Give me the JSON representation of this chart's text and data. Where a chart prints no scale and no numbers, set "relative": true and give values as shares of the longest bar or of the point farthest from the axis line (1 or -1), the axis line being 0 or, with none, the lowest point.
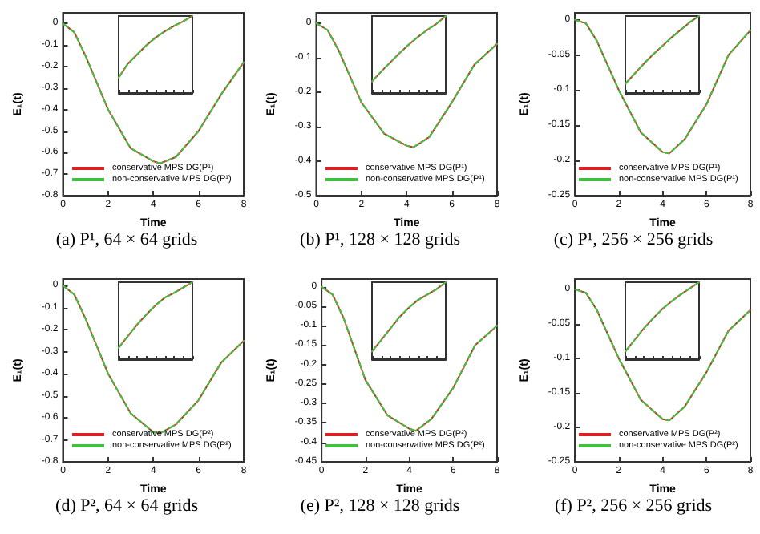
{
  "chart_data": [
    {
      "type": "line",
      "title": "(a) P¹, 64 × 64 grids",
      "xlabel": "Time",
      "ylabel": "E₁(t)",
      "x": [
        0,
        0.5,
        1,
        2,
        3,
        4,
        4.3,
        5,
        6,
        7,
        8
      ],
      "xlim": [
        0,
        8
      ],
      "xticks": [
        0,
        2,
        4,
        6,
        8
      ],
      "ylim": [
        -0.8,
        0.05
      ],
      "yticks": [
        0,
        -0.1,
        -0.2,
        -0.3,
        -0.4,
        -0.5,
        -0.6,
        -0.7,
        -0.8
      ],
      "legend": "bottom",
      "series": [
        {
          "name": "conservative MPS DG(P¹)",
          "color": "#e02020",
          "values": [
            0,
            -0.04,
            -0.15,
            -0.4,
            -0.58,
            -0.64,
            -0.65,
            -0.62,
            -0.5,
            -0.33,
            -0.18
          ]
        },
        {
          "name": "non-conservative MPS DG(P¹)",
          "color": "#40c040",
          "line_style": "dashed",
          "values": [
            0,
            -0.04,
            -0.15,
            -0.4,
            -0.58,
            -0.64,
            -0.65,
            -0.62,
            -0.5,
            -0.33,
            -0.18
          ]
        }
      ]
    },
    {
      "type": "line",
      "relative": true,
      "tick_labels": false,
      "categories": [
        null,
        null,
        null,
        null,
        null,
        null,
        null,
        null,
        null
      ],
      "series": [
        {
          "color": "#e02020",
          "values": [
            0.2,
            0.38,
            0.5,
            0.62,
            0.72,
            0.8,
            0.87,
            0.93,
            1
          ]
        },
        {
          "color": "#40c040",
          "line_style": "dashed",
          "values": [
            0.2,
            0.38,
            0.5,
            0.62,
            0.72,
            0.8,
            0.87,
            0.93,
            1
          ]
        }
      ]
    },
    {
      "type": "line",
      "title": "(b) P¹, 128 × 128 grids",
      "xlabel": "Time",
      "ylabel": "E₁(t)",
      "x": [
        0,
        0.5,
        1,
        2,
        3,
        4,
        4.3,
        5,
        6,
        7,
        8
      ],
      "xlim": [
        0,
        8
      ],
      "xticks": [
        0,
        2,
        4,
        6,
        8
      ],
      "ylim": [
        -0.5,
        0.03
      ],
      "yticks": [
        0,
        -0.1,
        -0.2,
        -0.3,
        -0.4,
        -0.5
      ],
      "legend": "bottom",
      "series": [
        {
          "name": "conservative MPS DG(P¹)",
          "color": "#e02020",
          "values": [
            0,
            -0.02,
            -0.08,
            -0.23,
            -0.32,
            -0.355,
            -0.36,
            -0.33,
            -0.23,
            -0.12,
            -0.06
          ]
        },
        {
          "name": "non-conservative MPS DG(P¹)",
          "color": "#40c040",
          "line_style": "dashed",
          "values": [
            0,
            -0.02,
            -0.08,
            -0.23,
            -0.32,
            -0.355,
            -0.36,
            -0.33,
            -0.23,
            -0.12,
            -0.06
          ]
        }
      ]
    },
    {
      "type": "line",
      "relative": true,
      "tick_labels": false,
      "categories": [
        null,
        null,
        null,
        null,
        null,
        null,
        null,
        null,
        null
      ],
      "series": [
        {
          "color": "#e02020",
          "values": [
            0.15,
            0.28,
            0.4,
            0.52,
            0.63,
            0.73,
            0.82,
            0.9,
            1
          ]
        },
        {
          "color": "#40c040",
          "line_style": "dashed",
          "values": [
            0.15,
            0.28,
            0.4,
            0.52,
            0.63,
            0.73,
            0.82,
            0.9,
            1
          ]
        }
      ]
    },
    {
      "type": "line",
      "title": "(c) P¹, 256 × 256 grids",
      "xlabel": "Time",
      "ylabel": "E₁(t)",
      "x": [
        0,
        0.5,
        1,
        2,
        3,
        4,
        4.3,
        5,
        6,
        7,
        8
      ],
      "xlim": [
        0,
        8
      ],
      "xticks": [
        0,
        2,
        4,
        6,
        8
      ],
      "ylim": [
        -0.25,
        0.01
      ],
      "yticks": [
        0,
        -0.05,
        -0.1,
        -0.15,
        -0.2,
        -0.25
      ],
      "legend": "bottom",
      "series": [
        {
          "name": "conservative MPS DG(P¹)",
          "color": "#e02020",
          "values": [
            0,
            -0.005,
            -0.03,
            -0.1,
            -0.16,
            -0.188,
            -0.19,
            -0.17,
            -0.12,
            -0.05,
            -0.015
          ]
        },
        {
          "name": "non-conservative MPS DG(P¹)",
          "color": "#40c040",
          "line_style": "dashed",
          "values": [
            0,
            -0.005,
            -0.03,
            -0.1,
            -0.16,
            -0.188,
            -0.19,
            -0.17,
            -0.12,
            -0.05,
            -0.015
          ]
        }
      ]
    },
    {
      "type": "line",
      "relative": true,
      "tick_labels": false,
      "categories": [
        null,
        null,
        null,
        null,
        null,
        null,
        null,
        null,
        null
      ],
      "series": [
        {
          "color": "#e02020",
          "values": [
            0.12,
            0.25,
            0.38,
            0.5,
            0.61,
            0.72,
            0.82,
            0.92,
            1
          ]
        },
        {
          "color": "#40c040",
          "line_style": "dashed",
          "values": [
            0.12,
            0.25,
            0.38,
            0.5,
            0.61,
            0.72,
            0.82,
            0.92,
            1
          ]
        }
      ]
    },
    {
      "type": "line",
      "title": "(d) P², 64 × 64 grids",
      "xlabel": "Time",
      "ylabel": "E₁(t)",
      "x": [
        0,
        0.5,
        1,
        2,
        3,
        4,
        4.3,
        5,
        6,
        7,
        8
      ],
      "xlim": [
        0,
        8
      ],
      "xticks": [
        0,
        2,
        4,
        6,
        8
      ],
      "ylim": [
        -0.8,
        0.03
      ],
      "yticks": [
        0,
        -0.1,
        -0.2,
        -0.3,
        -0.4,
        -0.5,
        -0.6,
        -0.7,
        -0.8
      ],
      "legend": "bottom",
      "series": [
        {
          "name": "conservative MPS DG(P²)",
          "color": "#e02020",
          "values": [
            0,
            -0.04,
            -0.15,
            -0.4,
            -0.58,
            -0.665,
            -0.67,
            -0.63,
            -0.52,
            -0.35,
            -0.25
          ]
        },
        {
          "name": "non-conservative MPS DG(P²)",
          "color": "#40c040",
          "line_style": "dashed",
          "values": [
            0,
            -0.04,
            -0.15,
            -0.4,
            -0.58,
            -0.665,
            -0.67,
            -0.63,
            -0.52,
            -0.35,
            -0.25
          ]
        }
      ]
    },
    {
      "type": "line",
      "relative": true,
      "tick_labels": false,
      "categories": [
        null,
        null,
        null,
        null,
        null,
        null,
        null,
        null,
        null
      ],
      "series": [
        {
          "color": "#e02020",
          "values": [
            0.15,
            0.3,
            0.45,
            0.58,
            0.7,
            0.8,
            0.86,
            0.93,
            1
          ]
        },
        {
          "color": "#40c040",
          "line_style": "dashed",
          "values": [
            0.15,
            0.3,
            0.45,
            0.58,
            0.7,
            0.8,
            0.86,
            0.93,
            1
          ]
        }
      ]
    },
    {
      "type": "line",
      "title": "(e) P², 128 × 128 grids",
      "xlabel": "Time",
      "ylabel": "E₁(t)",
      "x": [
        0,
        0.5,
        1,
        2,
        3,
        4,
        4.3,
        5,
        6,
        7,
        8
      ],
      "xlim": [
        0,
        8
      ],
      "xticks": [
        0,
        2,
        4,
        6,
        8
      ],
      "ylim": [
        -0.45,
        0.02
      ],
      "yticks": [
        0,
        -0.05,
        -0.1,
        -0.15,
        -0.2,
        -0.25,
        -0.3,
        -0.35,
        -0.4,
        -0.45
      ],
      "legend": "bottom",
      "series": [
        {
          "name": "conservative MPS DG(P²)",
          "color": "#e02020",
          "values": [
            0,
            -0.02,
            -0.08,
            -0.24,
            -0.33,
            -0.365,
            -0.37,
            -0.34,
            -0.26,
            -0.15,
            -0.1
          ]
        },
        {
          "name": "non-conservative MPS DG(P²)",
          "color": "#40c040",
          "line_style": "dashed",
          "values": [
            0,
            -0.02,
            -0.08,
            -0.24,
            -0.33,
            -0.365,
            -0.37,
            -0.34,
            -0.26,
            -0.15,
            -0.1
          ]
        }
      ]
    },
    {
      "type": "line",
      "relative": true,
      "tick_labels": false,
      "categories": [
        null,
        null,
        null,
        null,
        null,
        null,
        null,
        null,
        null
      ],
      "series": [
        {
          "color": "#e02020",
          "values": [
            0.1,
            0.25,
            0.4,
            0.55,
            0.67,
            0.77,
            0.84,
            0.91,
            1
          ]
        },
        {
          "color": "#40c040",
          "line_style": "dashed",
          "values": [
            0.1,
            0.25,
            0.4,
            0.55,
            0.67,
            0.77,
            0.84,
            0.91,
            1
          ]
        }
      ]
    },
    {
      "type": "line",
      "title": "(f) P², 256 × 256 grids",
      "xlabel": "Time",
      "ylabel": "E₁(t)",
      "x": [
        0,
        0.5,
        1,
        2,
        3,
        4,
        4.3,
        5,
        6,
        7,
        8
      ],
      "xlim": [
        0,
        8
      ],
      "xticks": [
        0,
        2,
        4,
        6,
        8
      ],
      "ylim": [
        -0.25,
        0.015
      ],
      "yticks": [
        0,
        -0.05,
        -0.1,
        -0.15,
        -0.2,
        -0.25
      ],
      "legend": "bottom",
      "series": [
        {
          "name": "conservative MPS DG(P²)",
          "color": "#e02020",
          "values": [
            0,
            -0.005,
            -0.03,
            -0.1,
            -0.16,
            -0.188,
            -0.19,
            -0.17,
            -0.12,
            -0.06,
            -0.03
          ]
        },
        {
          "name": "non-conservative MPS DG(P²)",
          "color": "#40c040",
          "line_style": "dashed",
          "values": [
            0,
            -0.005,
            -0.03,
            -0.1,
            -0.16,
            -0.188,
            -0.19,
            -0.17,
            -0.12,
            -0.06,
            -0.03
          ]
        }
      ]
    },
    {
      "type": "line",
      "relative": true,
      "tick_labels": false,
      "categories": [
        null,
        null,
        null,
        null,
        null,
        null,
        null,
        null,
        null
      ],
      "series": [
        {
          "color": "#e02020",
          "values": [
            0.1,
            0.25,
            0.4,
            0.53,
            0.65,
            0.75,
            0.84,
            0.92,
            1
          ]
        },
        {
          "color": "#40c040",
          "line_style": "dashed",
          "values": [
            0.1,
            0.25,
            0.4,
            0.53,
            0.65,
            0.75,
            0.84,
            0.92,
            1
          ]
        }
      ]
    }
  ]
}
